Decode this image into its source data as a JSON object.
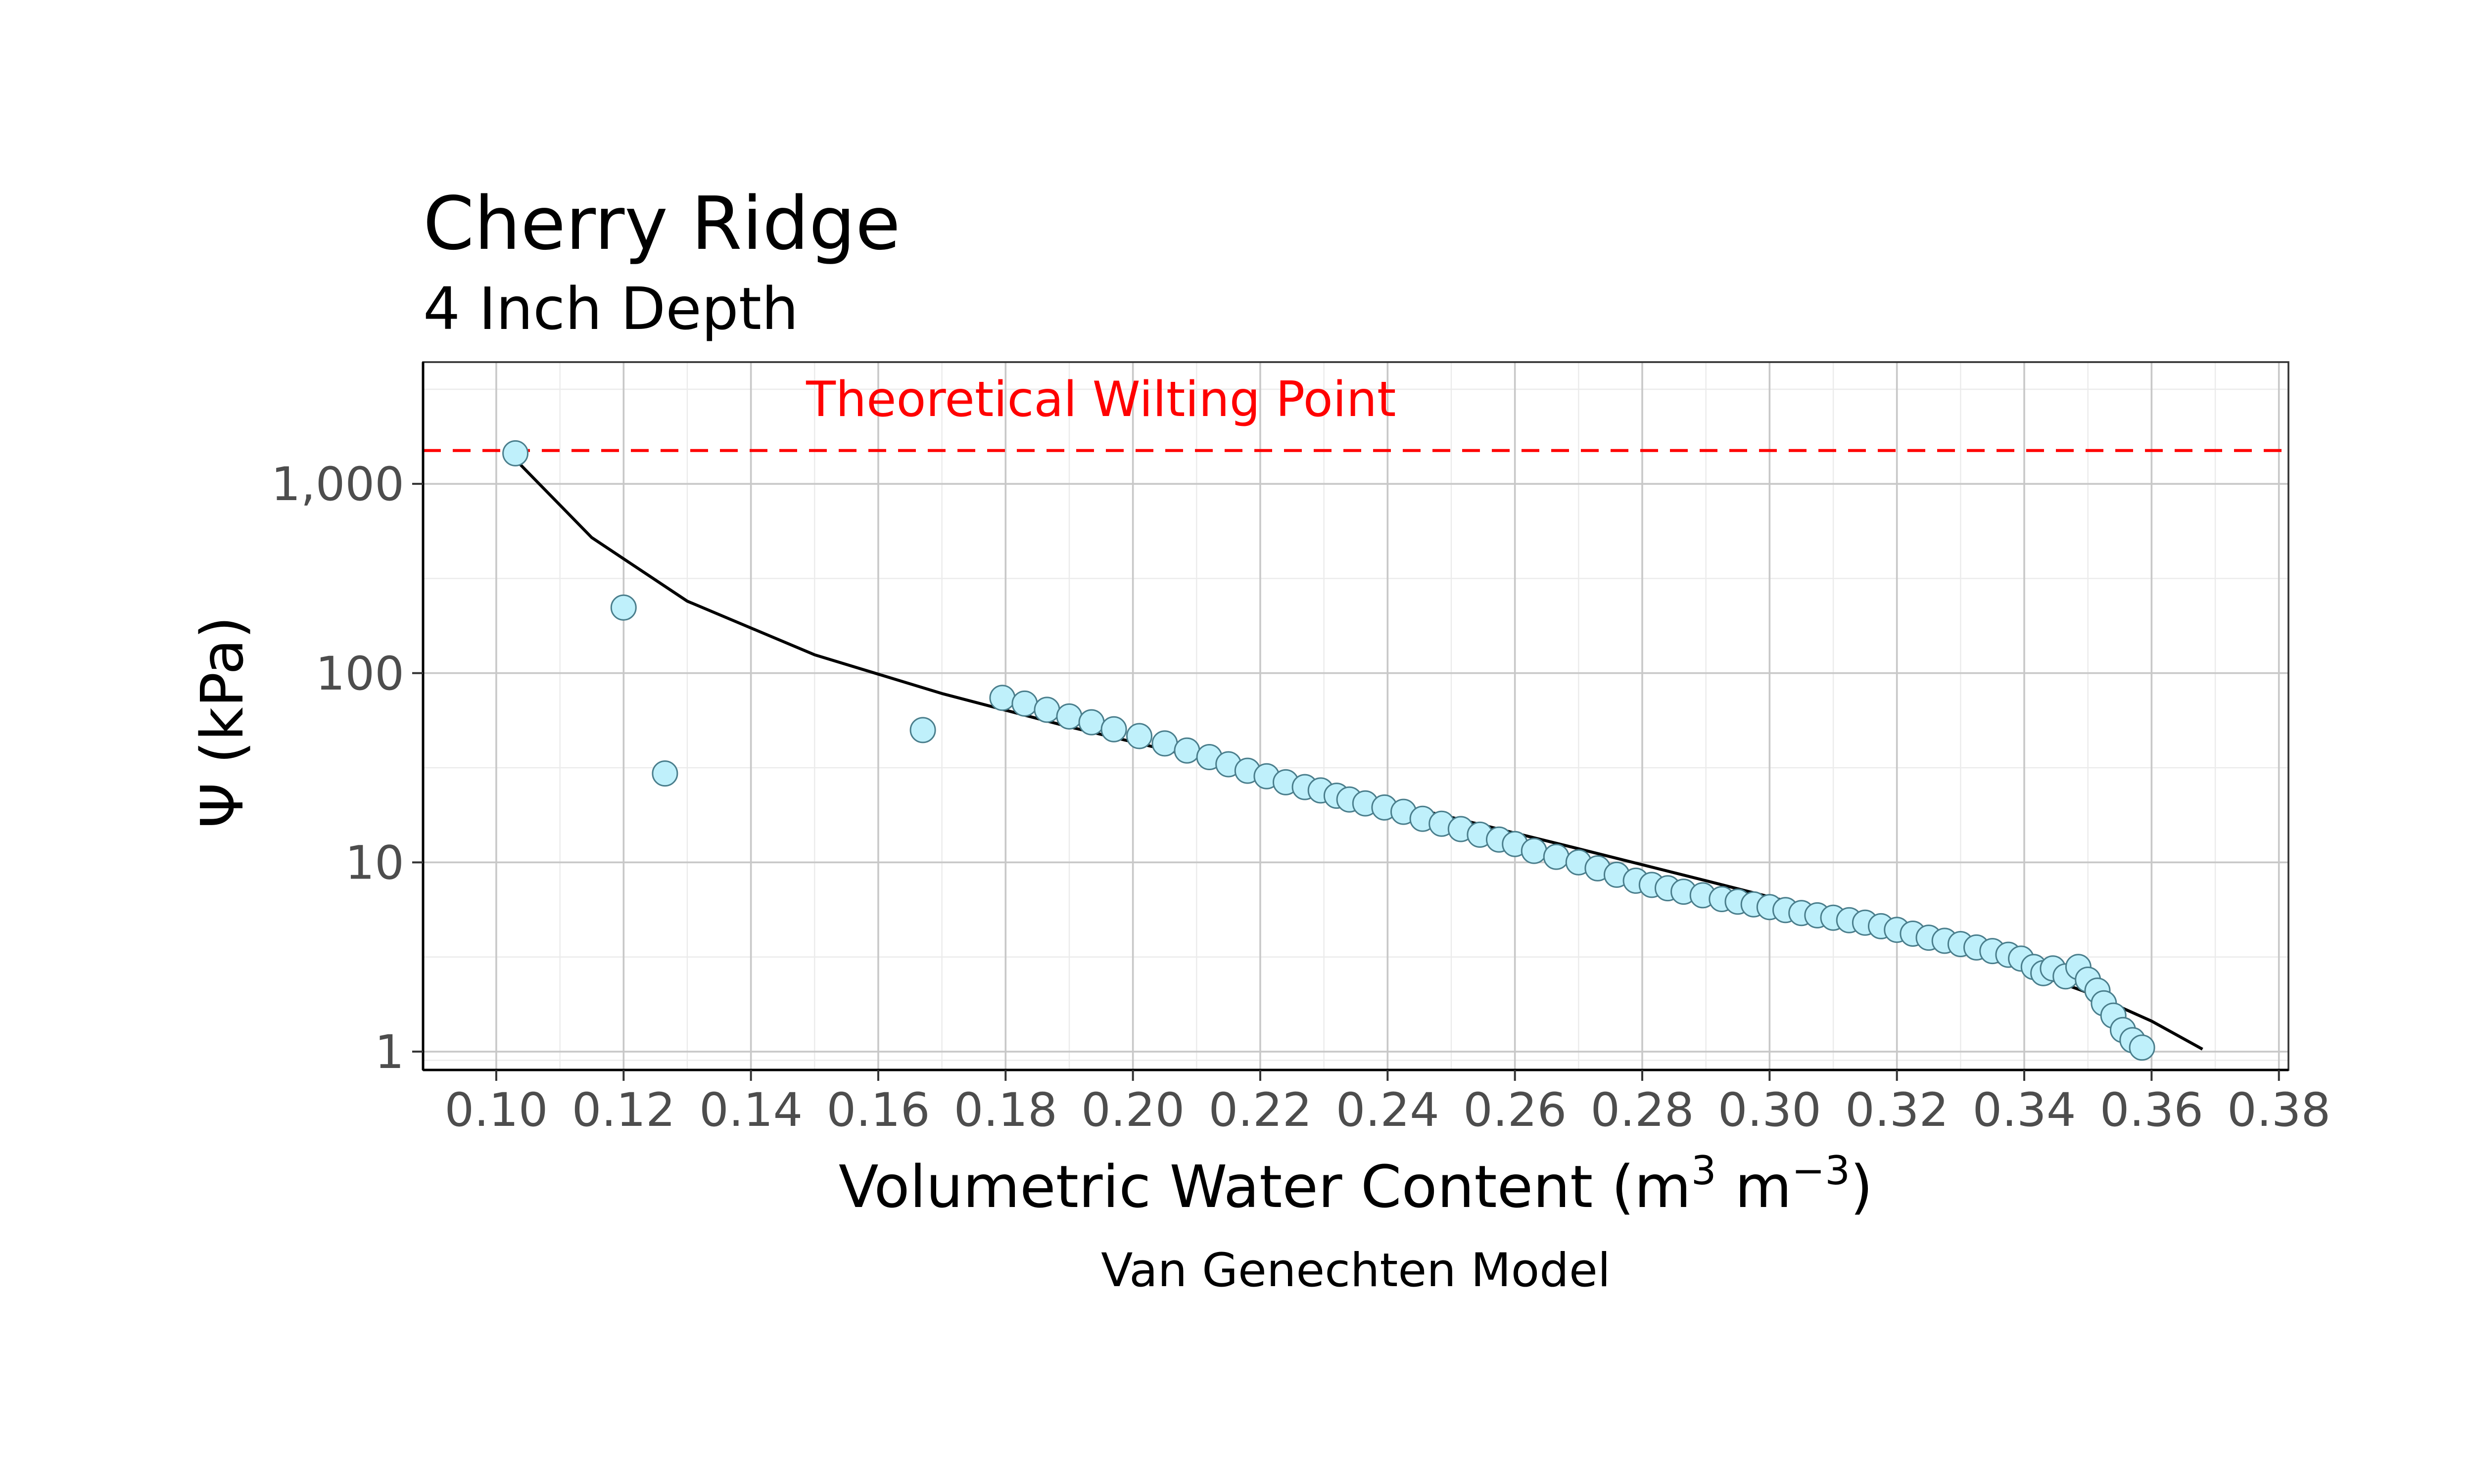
{
  "chart_data": {
    "type": "scatter",
    "title": "Cherry Ridge",
    "subtitle": "4 Inch Depth",
    "caption": "Van Genechten Model",
    "xlabel_main": "Volumetric Water Content (m",
    "xlabel_sup1": "3",
    "xlabel_mid": " m",
    "xlabel_sup2": "−3",
    "xlabel_end": ")",
    "ylabel": "Ψ (kPa)",
    "x_scale": "linear",
    "y_scale": "log10",
    "xlim": [
      0.0885,
      0.3815
    ],
    "ylim": [
      0.8,
      4400
    ],
    "x_ticks": [
      0.1,
      0.12,
      0.14,
      0.16,
      0.18,
      0.2,
      0.22,
      0.24,
      0.26,
      0.28,
      0.3,
      0.32,
      0.34,
      0.36,
      0.38
    ],
    "x_tick_labels": [
      "0.10",
      "0.12",
      "0.14",
      "0.16",
      "0.18",
      "0.20",
      "0.22",
      "0.24",
      "0.26",
      "0.28",
      "0.30",
      "0.32",
      "0.34",
      "0.36",
      "0.38"
    ],
    "y_ticks": [
      1,
      10,
      100,
      1000
    ],
    "y_tick_labels": [
      "1",
      "10",
      "100",
      "1,000"
    ],
    "grid": true,
    "reference_line": {
      "y": 1500,
      "label": "Theoretical Wilting Point",
      "label_x": 0.195,
      "label_y": 2800,
      "color": "#ff0000",
      "style": "dashed"
    },
    "points_color": "#bff0fb",
    "series": [
      {
        "kind": "points",
        "values": [
          [
            0.103,
            1450
          ],
          [
            0.12,
            222
          ],
          [
            0.1265,
            29.5
          ],
          [
            0.167,
            50
          ],
          [
            0.1795,
            74
          ],
          [
            0.183,
            69
          ],
          [
            0.1865,
            64
          ],
          [
            0.19,
            59
          ],
          [
            0.1935,
            55
          ],
          [
            0.197,
            50.5
          ],
          [
            0.201,
            46.5
          ],
          [
            0.205,
            42.5
          ],
          [
            0.2085,
            39
          ],
          [
            0.212,
            36
          ],
          [
            0.215,
            33
          ],
          [
            0.218,
            30.5
          ],
          [
            0.221,
            28.5
          ],
          [
            0.224,
            26.5
          ],
          [
            0.227,
            25
          ],
          [
            0.2295,
            24
          ],
          [
            0.232,
            22.5
          ],
          [
            0.234,
            21.5
          ],
          [
            0.2365,
            20.5
          ],
          [
            0.2395,
            19.5
          ],
          [
            0.2425,
            18.5
          ],
          [
            0.2455,
            17
          ],
          [
            0.2485,
            16
          ],
          [
            0.2515,
            15
          ],
          [
            0.2545,
            14
          ],
          [
            0.2575,
            13.2
          ],
          [
            0.26,
            12.5
          ],
          [
            0.263,
            11.5
          ],
          [
            0.2665,
            10.7
          ],
          [
            0.27,
            10
          ],
          [
            0.273,
            9.3
          ],
          [
            0.276,
            8.6
          ],
          [
            0.279,
            8.0
          ],
          [
            0.2815,
            7.6
          ],
          [
            0.284,
            7.3
          ],
          [
            0.2865,
            7.0
          ],
          [
            0.2895,
            6.7
          ],
          [
            0.2925,
            6.4
          ],
          [
            0.295,
            6.2
          ],
          [
            0.2975,
            6.0
          ],
          [
            0.3,
            5.8
          ],
          [
            0.3025,
            5.6
          ],
          [
            0.305,
            5.4
          ],
          [
            0.3075,
            5.25
          ],
          [
            0.31,
            5.1
          ],
          [
            0.3125,
            4.95
          ],
          [
            0.315,
            4.8
          ],
          [
            0.3175,
            4.6
          ],
          [
            0.32,
            4.4
          ],
          [
            0.3225,
            4.2
          ],
          [
            0.325,
            4.0
          ],
          [
            0.3275,
            3.85
          ],
          [
            0.33,
            3.7
          ],
          [
            0.3325,
            3.55
          ],
          [
            0.335,
            3.4
          ],
          [
            0.3375,
            3.25
          ],
          [
            0.3395,
            3.1
          ],
          [
            0.3415,
            2.8
          ],
          [
            0.343,
            2.6
          ],
          [
            0.3445,
            2.75
          ],
          [
            0.3465,
            2.5
          ],
          [
            0.3485,
            2.8
          ],
          [
            0.35,
            2.4
          ],
          [
            0.3515,
            2.1
          ],
          [
            0.3525,
            1.8
          ],
          [
            0.354,
            1.55
          ],
          [
            0.3555,
            1.3
          ],
          [
            0.357,
            1.15
          ],
          [
            0.3585,
            1.05
          ]
        ]
      },
      {
        "kind": "line",
        "values": [
          [
            0.1025,
            1400
          ],
          [
            0.115,
            520
          ],
          [
            0.13,
            240
          ],
          [
            0.15,
            125
          ],
          [
            0.17,
            78
          ],
          [
            0.19,
            52
          ],
          [
            0.21,
            36
          ],
          [
            0.23,
            25
          ],
          [
            0.25,
            17.3
          ],
          [
            0.27,
            11.8
          ],
          [
            0.29,
            8.0
          ],
          [
            0.31,
            5.4
          ],
          [
            0.32,
            4.35
          ],
          [
            0.33,
            3.45
          ],
          [
            0.34,
            2.7
          ],
          [
            0.35,
            2.05
          ],
          [
            0.36,
            1.45
          ],
          [
            0.368,
            1.03
          ]
        ]
      }
    ]
  }
}
